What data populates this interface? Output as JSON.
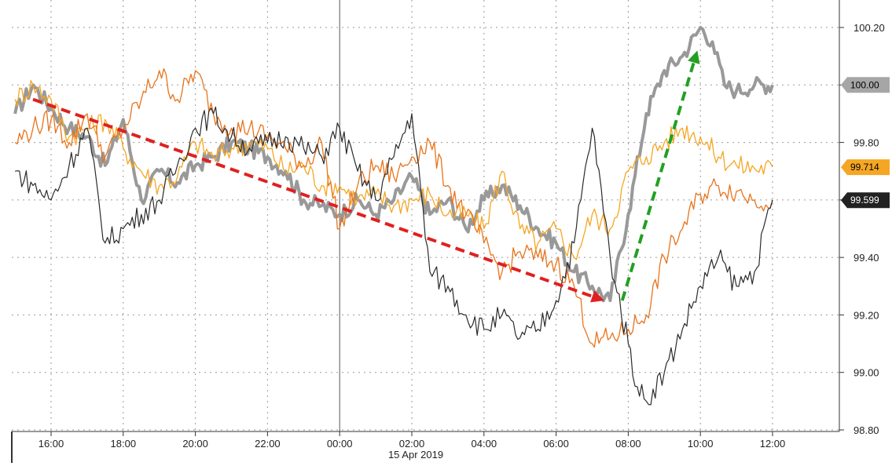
{
  "chart_data": {
    "type": "line",
    "title": "",
    "xlabel": "",
    "ylabel": "",
    "date_label": "15 Apr 2019",
    "x_ticks": [
      "16:00",
      "18:00",
      "20:00",
      "22:00",
      "00:00",
      "02:00",
      "04:00",
      "06:00",
      "08:00",
      "10:00",
      "12:00"
    ],
    "y_ticks": [
      "98.80",
      "99.00",
      "99.20",
      "99.40",
      "99.60",
      "99.80",
      "100.00",
      "100.20"
    ],
    "ylim": [
      98.8,
      100.25
    ],
    "xlim_hours": [
      14.8,
      12.5
    ],
    "grid": true,
    "legend": "none",
    "badges": [
      {
        "label": "100.00",
        "value": 100.0,
        "color": "#a6a6a6",
        "text_color": "#000000"
      },
      {
        "label": "99.714",
        "value": 99.714,
        "color": "#f5a623",
        "text_color": "#000000"
      },
      {
        "label": "99.599",
        "value": 99.599,
        "color": "#222222",
        "text_color": "#ffffff"
      }
    ],
    "series": [
      {
        "color": "#999999",
        "width": 4,
        "x": [
          "15:00",
          "15:30",
          "16:00",
          "16:30",
          "17:00",
          "17:30",
          "18:00",
          "18:30",
          "19:00",
          "19:30",
          "20:00",
          "20:30",
          "21:00",
          "21:30",
          "22:00",
          "22:30",
          "23:00",
          "23:30",
          "00:00",
          "00:30",
          "01:00",
          "01:30",
          "02:00",
          "02:30",
          "03:00",
          "03:30",
          "04:00",
          "04:30",
          "05:00",
          "05:30",
          "06:00",
          "06:30",
          "07:00",
          "07:30",
          "08:00",
          "08:30",
          "09:00",
          "09:30",
          "10:00",
          "10:20",
          "10:40",
          "11:00",
          "11:30",
          "12:00"
        ],
        "values": [
          99.9,
          100.0,
          99.92,
          99.85,
          99.82,
          99.72,
          99.88,
          99.6,
          99.7,
          99.66,
          99.72,
          99.75,
          99.8,
          99.78,
          99.75,
          99.7,
          99.6,
          99.58,
          99.55,
          99.6,
          99.55,
          99.6,
          99.68,
          99.55,
          99.6,
          99.5,
          99.6,
          99.65,
          99.58,
          99.5,
          99.45,
          99.35,
          99.3,
          99.25,
          99.55,
          99.9,
          100.05,
          100.1,
          100.2,
          100.15,
          100.0,
          99.98,
          100.0,
          100.0
        ]
      },
      {
        "color": "#f5a623",
        "width": 1.3,
        "x": [
          "15:00",
          "15:30",
          "16:00",
          "16:30",
          "17:00",
          "17:30",
          "18:00",
          "18:30",
          "19:00",
          "19:30",
          "20:00",
          "20:30",
          "21:00",
          "21:30",
          "22:00",
          "22:30",
          "23:00",
          "23:30",
          "00:00",
          "00:30",
          "01:00",
          "01:30",
          "02:00",
          "02:30",
          "03:00",
          "03:30",
          "04:00",
          "04:30",
          "05:00",
          "05:30",
          "06:00",
          "06:30",
          "07:00",
          "07:30",
          "08:00",
          "08:30",
          "09:00",
          "09:30",
          "10:00",
          "10:30",
          "11:00",
          "11:30",
          "12:00"
        ],
        "values": [
          99.95,
          100.0,
          99.95,
          99.82,
          99.85,
          99.88,
          99.78,
          99.7,
          99.65,
          99.68,
          99.8,
          99.75,
          99.78,
          99.8,
          99.78,
          99.7,
          99.72,
          99.65,
          99.65,
          99.6,
          99.62,
          99.58,
          99.6,
          99.62,
          99.55,
          99.55,
          99.5,
          99.7,
          99.5,
          99.45,
          99.5,
          99.4,
          99.55,
          99.5,
          99.7,
          99.75,
          99.8,
          99.85,
          99.82,
          99.75,
          99.72,
          99.71,
          99.714
        ]
      },
      {
        "color": "#e8731c",
        "width": 1.3,
        "x": [
          "15:00",
          "15:30",
          "16:00",
          "16:30",
          "17:00",
          "17:30",
          "18:00",
          "18:30",
          "19:00",
          "19:30",
          "20:00",
          "20:30",
          "21:00",
          "21:30",
          "22:00",
          "22:30",
          "23:00",
          "23:30",
          "00:00",
          "00:30",
          "01:00",
          "01:30",
          "02:00",
          "02:30",
          "03:00",
          "03:30",
          "04:00",
          "04:30",
          "05:00",
          "05:30",
          "06:00",
          "06:30",
          "07:00",
          "07:30",
          "08:00",
          "08:30",
          "09:00",
          "09:30",
          "10:00",
          "10:30",
          "11:00",
          "11:30",
          "12:00"
        ],
        "values": [
          99.8,
          99.85,
          99.88,
          99.8,
          99.9,
          99.75,
          99.85,
          99.95,
          100.05,
          99.95,
          100.05,
          99.9,
          99.85,
          99.85,
          99.82,
          99.78,
          99.72,
          99.8,
          99.5,
          99.65,
          99.72,
          99.68,
          99.75,
          99.8,
          99.65,
          99.55,
          99.45,
          99.35,
          99.42,
          99.4,
          99.38,
          99.3,
          99.1,
          99.12,
          99.15,
          99.2,
          99.4,
          99.5,
          99.62,
          99.65,
          99.63,
          99.6,
          99.599
        ]
      },
      {
        "color": "#2b2b2b",
        "width": 1.2,
        "x": [
          "15:00",
          "15:30",
          "16:00",
          "16:30",
          "17:00",
          "17:30",
          "18:00",
          "18:30",
          "19:00",
          "19:30",
          "20:00",
          "20:30",
          "21:00",
          "21:30",
          "22:00",
          "22:30",
          "23:00",
          "23:30",
          "00:00",
          "00:30",
          "01:00",
          "01:30",
          "02:00",
          "02:30",
          "03:00",
          "03:30",
          "04:00",
          "04:30",
          "05:00",
          "05:30",
          "06:00",
          "06:30",
          "07:00",
          "07:30",
          "08:00",
          "08:15",
          "08:30",
          "09:00",
          "09:30",
          "10:00",
          "10:30",
          "11:00",
          "11:30",
          "12:00"
        ],
        "values": [
          99.7,
          99.65,
          99.6,
          99.72,
          99.85,
          99.45,
          99.5,
          99.55,
          99.6,
          99.72,
          99.85,
          99.9,
          99.82,
          99.78,
          99.8,
          99.82,
          99.78,
          99.75,
          99.85,
          99.7,
          99.6,
          99.75,
          99.9,
          99.35,
          99.3,
          99.2,
          99.15,
          99.2,
          99.12,
          99.15,
          99.25,
          99.45,
          99.85,
          99.4,
          99.1,
          98.95,
          98.9,
          99.0,
          99.15,
          99.3,
          99.4,
          99.3,
          99.35,
          99.6
        ]
      }
    ],
    "annotations": [
      {
        "type": "dashed-arrow",
        "color": "#e02020",
        "from": {
          "x": "15:30",
          "y": 99.95
        },
        "to": {
          "x": "07:20",
          "y": 99.25
        }
      },
      {
        "type": "dashed-arrow",
        "color": "#22a022",
        "from": {
          "x": "07:50",
          "y": 99.25
        },
        "to": {
          "x": "09:55",
          "y": 100.12
        }
      }
    ]
  }
}
